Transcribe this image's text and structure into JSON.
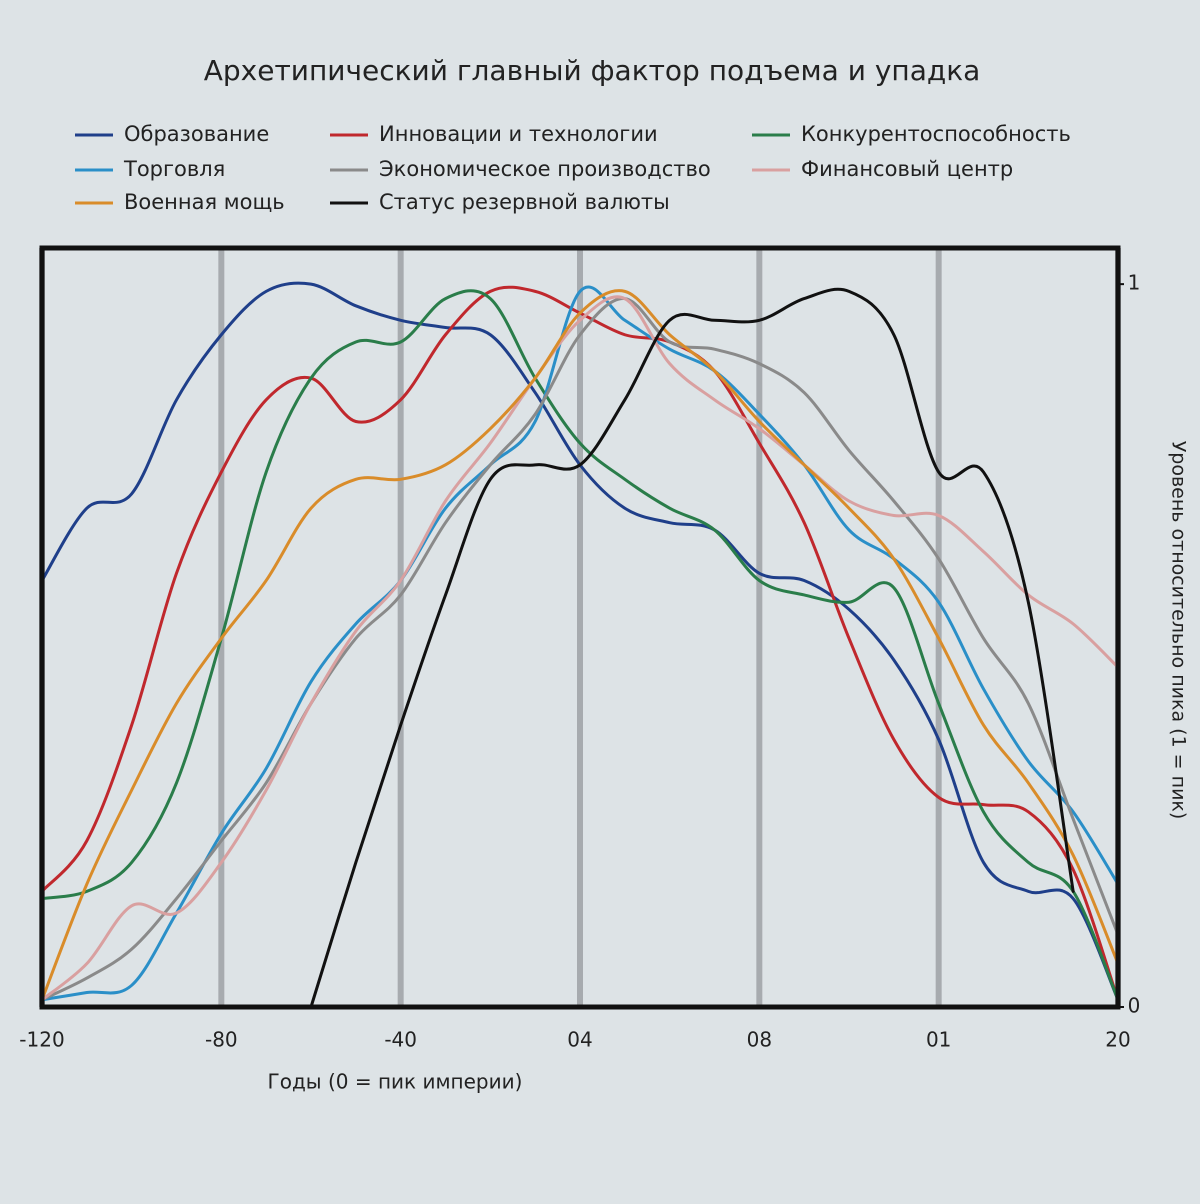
{
  "chart_data": {
    "type": "line",
    "title": "Архетипический главный фактор подъема и упадка",
    "x_label": "Годы (0 = пик империи)",
    "y_label": "Уровень относительно пика (1 = пик)",
    "x": [
      -120,
      -110,
      -100,
      -90,
      -80,
      -70,
      -60,
      -50,
      -40,
      -30,
      -20,
      -10,
      0,
      10,
      20,
      30,
      40,
      50,
      60,
      70,
      80,
      90,
      100,
      110,
      120
    ],
    "xlim": [
      -120,
      120
    ],
    "xticks": [
      -120,
      -80,
      -40,
      {
        "value": 0,
        "label": "04"
      },
      {
        "value": 40,
        "label": "08"
      },
      {
        "value": 80,
        "label": "01"
      },
      {
        "value": 120,
        "label": "20"
      }
    ],
    "ylim": [
      0,
      1.05
    ],
    "yticks": [
      0,
      1
    ],
    "grid": true,
    "series": [
      {
        "name": "Образование",
        "color": "#1f3f8a",
        "values": [
          0.59,
          0.69,
          0.71,
          0.84,
          0.93,
          0.99,
          1.0,
          0.97,
          0.95,
          0.94,
          0.93,
          0.85,
          0.75,
          0.69,
          0.67,
          0.66,
          0.6,
          0.59,
          0.55,
          0.48,
          0.37,
          0.2,
          0.16,
          0.15,
          0.01
        ]
      },
      {
        "name": "Инновации и технологии",
        "color": "#c0282d",
        "values": [
          0.16,
          0.23,
          0.39,
          0.6,
          0.74,
          0.84,
          0.87,
          0.81,
          0.84,
          0.93,
          0.99,
          0.99,
          0.96,
          0.93,
          0.92,
          0.88,
          0.78,
          0.67,
          0.51,
          0.37,
          0.29,
          0.28,
          0.27,
          0.19,
          0.01
        ]
      },
      {
        "name": "Конкурентоспособность",
        "color": "#2a7d4a",
        "values": [
          0.15,
          0.16,
          0.2,
          0.31,
          0.51,
          0.74,
          0.87,
          0.92,
          0.92,
          0.98,
          0.98,
          0.87,
          0.78,
          0.73,
          0.69,
          0.66,
          0.59,
          0.57,
          0.56,
          0.58,
          0.42,
          0.27,
          0.2,
          0.16,
          0.01
        ]
      },
      {
        "name": "Торговля",
        "color": "#2a8fc8",
        "values": [
          0.01,
          0.02,
          0.03,
          0.13,
          0.24,
          0.33,
          0.45,
          0.53,
          0.59,
          0.69,
          0.75,
          0.81,
          0.99,
          0.95,
          0.91,
          0.88,
          0.82,
          0.75,
          0.66,
          0.62,
          0.56,
          0.44,
          0.34,
          0.27,
          0.17
        ]
      },
      {
        "name": "Экономическое производство",
        "color": "#8a8a8a",
        "values": [
          0.01,
          0.04,
          0.08,
          0.15,
          0.23,
          0.31,
          0.42,
          0.51,
          0.57,
          0.67,
          0.75,
          0.82,
          0.93,
          0.98,
          0.92,
          0.91,
          0.89,
          0.85,
          0.77,
          0.7,
          0.62,
          0.51,
          0.42,
          0.26,
          0.1
        ]
      },
      {
        "name": "Финансовый центр",
        "color": "#d9a0a0",
        "values": [
          0.01,
          0.06,
          0.14,
          0.13,
          0.2,
          0.3,
          0.42,
          0.52,
          0.59,
          0.7,
          0.78,
          0.87,
          0.95,
          0.98,
          0.89,
          0.84,
          0.8,
          0.75,
          0.7,
          0.68,
          0.68,
          0.63,
          0.57,
          0.53,
          0.47
        ]
      },
      {
        "name": "Военная мощь",
        "color": "#d98c2a",
        "values": [
          0.01,
          0.17,
          0.3,
          0.42,
          0.51,
          0.59,
          0.69,
          0.73,
          0.73,
          0.75,
          0.8,
          0.87,
          0.96,
          0.99,
          0.93,
          0.88,
          0.81,
          0.75,
          0.69,
          0.62,
          0.51,
          0.39,
          0.31,
          0.21,
          0.06
        ]
      },
      {
        "name": "Статус резервной валюты",
        "color": "#111111",
        "values": [
          null,
          null,
          null,
          null,
          null,
          null,
          0.0,
          0.2,
          0.39,
          0.57,
          0.73,
          0.75,
          0.75,
          0.84,
          0.95,
          0.95,
          0.95,
          0.98,
          0.99,
          0.93,
          0.74,
          0.74,
          0.56,
          0.16,
          null
        ]
      }
    ]
  }
}
